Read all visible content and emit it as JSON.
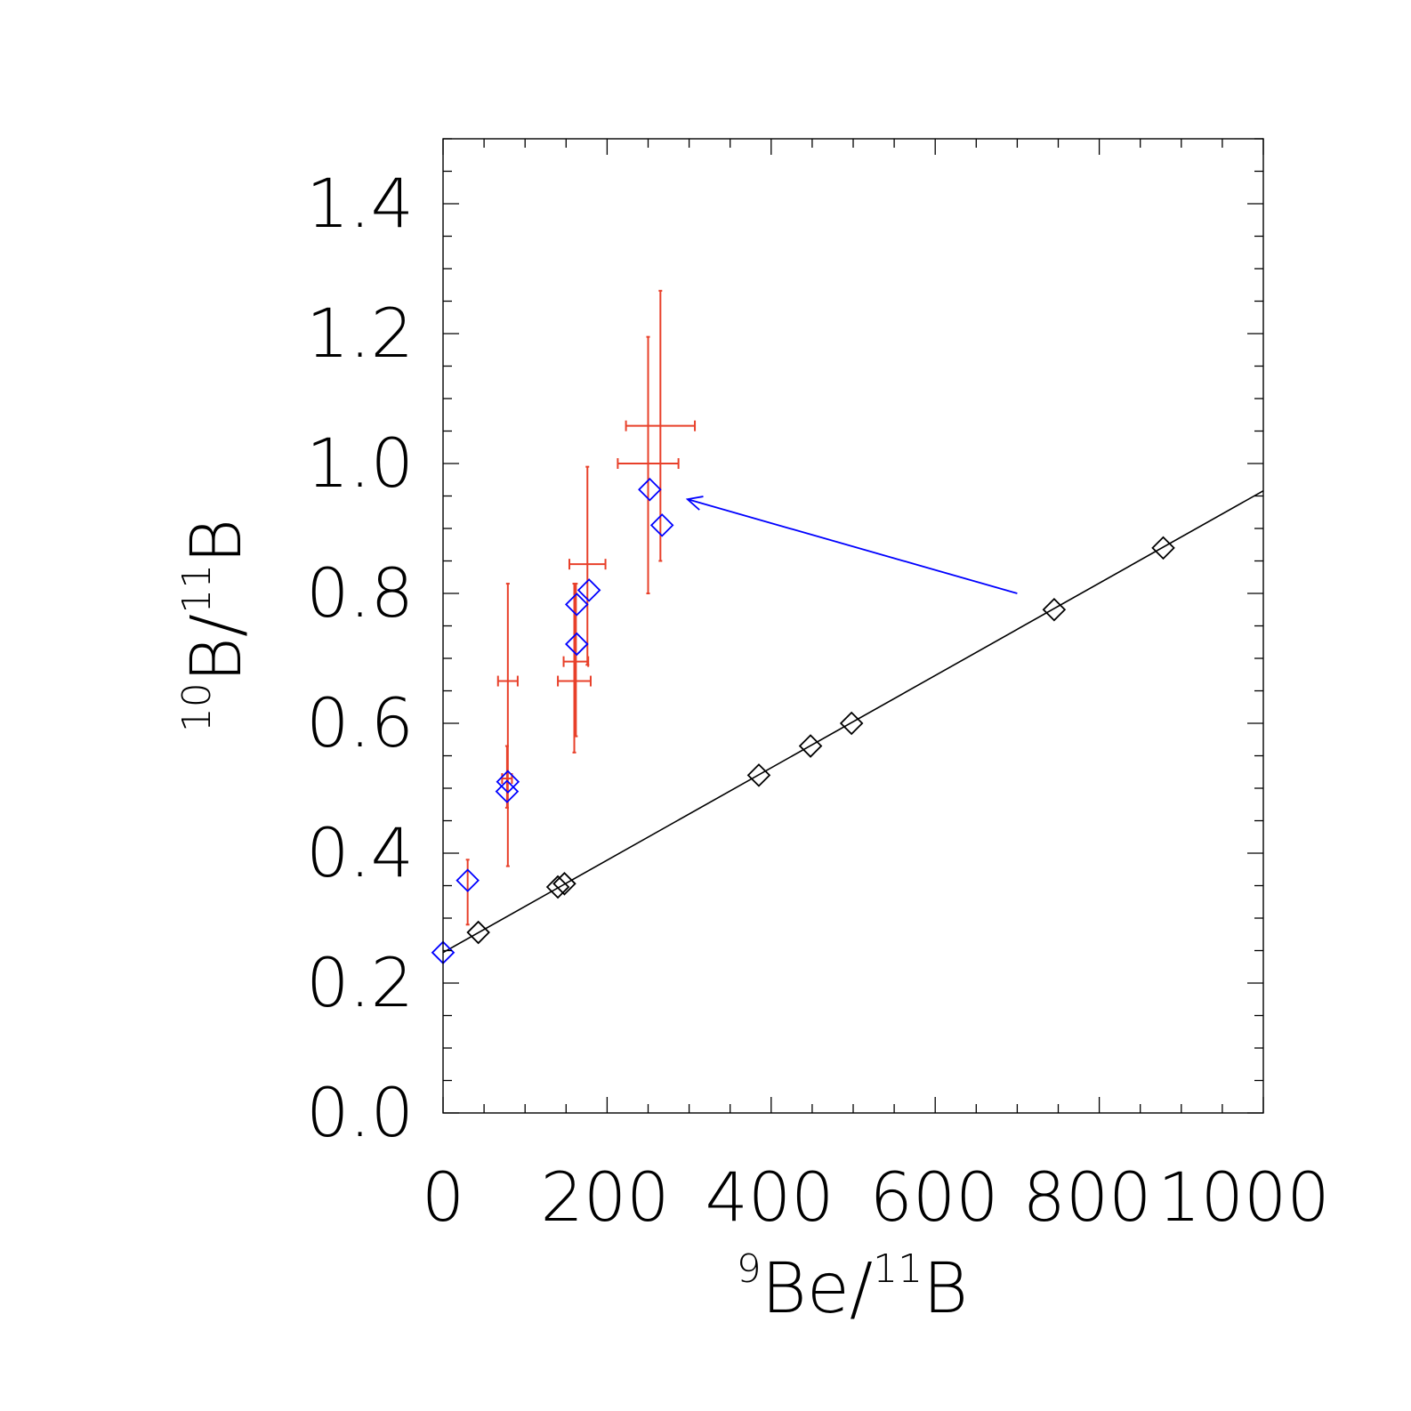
{
  "chart_data": {
    "type": "scatter",
    "xlabel": {
      "iso_mass": "9",
      "element": "Be",
      "sep": "/",
      "iso_mass2": "11",
      "element2": "B"
    },
    "ylabel": {
      "iso_mass": "10",
      "element": "B",
      "sep": "/",
      "iso_mass2": "11",
      "element2": "B"
    },
    "xlim": [
      0,
      1000
    ],
    "ylim": [
      0.0,
      1.5
    ],
    "x_ticks": [
      0,
      200,
      400,
      600,
      800,
      1000
    ],
    "x_tick_labels": [
      "0",
      "200",
      "400",
      "600",
      "800",
      "1000"
    ],
    "y_ticks": [
      0.0,
      0.2,
      0.4,
      0.6,
      0.8,
      1.0,
      1.2,
      1.4
    ],
    "y_tick_labels": [
      "0.0",
      "0.2",
      "0.4",
      "0.6",
      "0.8",
      "1.0",
      "1.2",
      "1.4"
    ],
    "grid": false,
    "colors": {
      "line": "#000000",
      "model_marker": "#000000",
      "data_marker": "#0000ff",
      "error_bar": "#e8402a",
      "arrow": "#0000ff"
    },
    "line": {
      "x": [
        0,
        1000
      ],
      "y": [
        0.247,
        0.958
      ]
    },
    "model_points": {
      "x": [
        43,
        140,
        148,
        385,
        448,
        498,
        745,
        878
      ],
      "y": [
        0.278,
        0.348,
        0.353,
        0.52,
        0.565,
        0.6,
        0.775,
        0.87
      ]
    },
    "data_points": [
      {
        "x": 0,
        "y": 0.247
      },
      {
        "x": 30,
        "y": 0.358
      },
      {
        "x": 78,
        "y": 0.495
      },
      {
        "x": 79,
        "y": 0.51
      },
      {
        "x": 163,
        "y": 0.722
      },
      {
        "x": 163,
        "y": 0.783
      },
      {
        "x": 178,
        "y": 0.805
      },
      {
        "x": 252,
        "y": 0.96
      },
      {
        "x": 267,
        "y": 0.905
      }
    ],
    "error_bars": [
      {
        "x": 30,
        "y": 0.345,
        "yerr": [
          0.055,
          0.045
        ],
        "xerr": [
          0,
          0
        ]
      },
      {
        "x": 78,
        "y": 0.515,
        "yerr": [
          0.045,
          0.05
        ],
        "xerr": [
          6,
          6
        ]
      },
      {
        "x": 79,
        "y": 0.665,
        "yerr": [
          0.285,
          0.15
        ],
        "xerr": [
          12,
          12
        ]
      },
      {
        "x": 160,
        "y": 0.665,
        "yerr": [
          0.11,
          0.15
        ],
        "xerr": [
          20,
          20
        ]
      },
      {
        "x": 162,
        "y": 0.695,
        "yerr": [
          0.115,
          0.12
        ],
        "xerr": [
          15,
          15
        ]
      },
      {
        "x": 176,
        "y": 0.845,
        "yerr": [
          0.155,
          0.15
        ],
        "xerr": [
          22,
          22
        ]
      },
      {
        "x": 250,
        "y": 1.0,
        "yerr": [
          0.2,
          0.195
        ],
        "xerr": [
          37,
          37
        ]
      },
      {
        "x": 265,
        "y": 1.058,
        "yerr": [
          0.208,
          0.208
        ],
        "xerr": [
          42,
          42
        ]
      }
    ],
    "annotation_arrow": {
      "from": [
        700,
        0.8
      ],
      "to": [
        298,
        0.945
      ]
    }
  }
}
